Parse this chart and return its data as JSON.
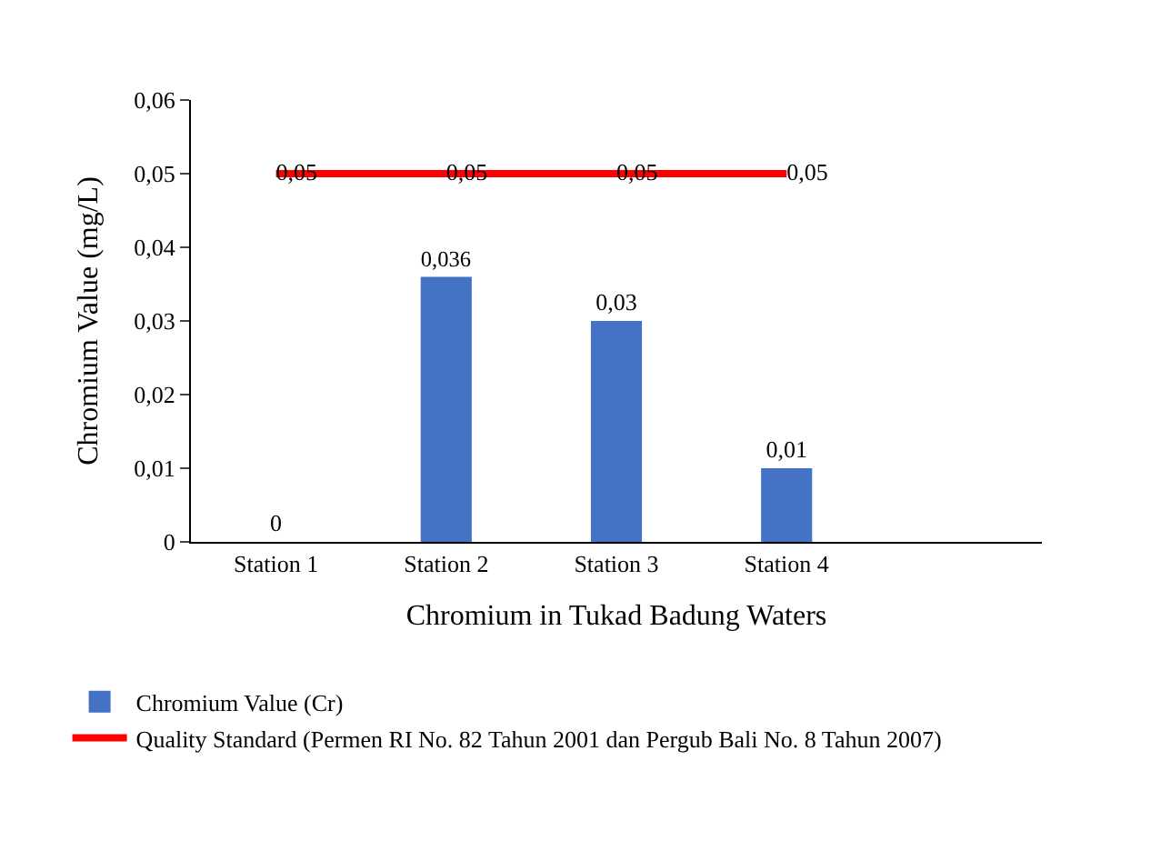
{
  "chart_data": {
    "type": "bar",
    "xlabel": "Chromium in Tukad Badung Waters",
    "ylabel": "Chromium Value (mg/L)",
    "categories": [
      "Station 1",
      "Station 2",
      "Station 3",
      "Station 4",
      null
    ],
    "series": [
      {
        "name": "Chromium Value (Cr)",
        "color": "#4472c4",
        "values": [
          0,
          0.036,
          0.03,
          0.01,
          null
        ],
        "value_labels": [
          "0",
          "0,036",
          "0,03",
          "0,01",
          null
        ]
      },
      {
        "name": "Quality Standard (Permen RI No. 82 Tahun 2001 dan Pergub Bali No. 8 Tahun 2007)",
        "type": "line",
        "color": "#ff0000",
        "values": [
          0.05,
          0.05,
          0.05,
          0.05,
          null
        ],
        "value_labels": [
          "0,05",
          "0,05",
          "0,05",
          "0,05",
          null
        ]
      }
    ],
    "ylim": [
      0,
      0.06
    ],
    "yticks": [
      {
        "value": 0,
        "label": "0"
      },
      {
        "value": 0.01,
        "label": "0,01"
      },
      {
        "value": 0.02,
        "label": "0,02"
      },
      {
        "value": 0.03,
        "label": "0,03"
      },
      {
        "value": 0.04,
        "label": "0,04"
      },
      {
        "value": 0.05,
        "label": "0,05"
      },
      {
        "value": 0.06,
        "label": "0,06"
      }
    ],
    "legend": "bottom",
    "marker": "none",
    "line_style": "solid"
  }
}
